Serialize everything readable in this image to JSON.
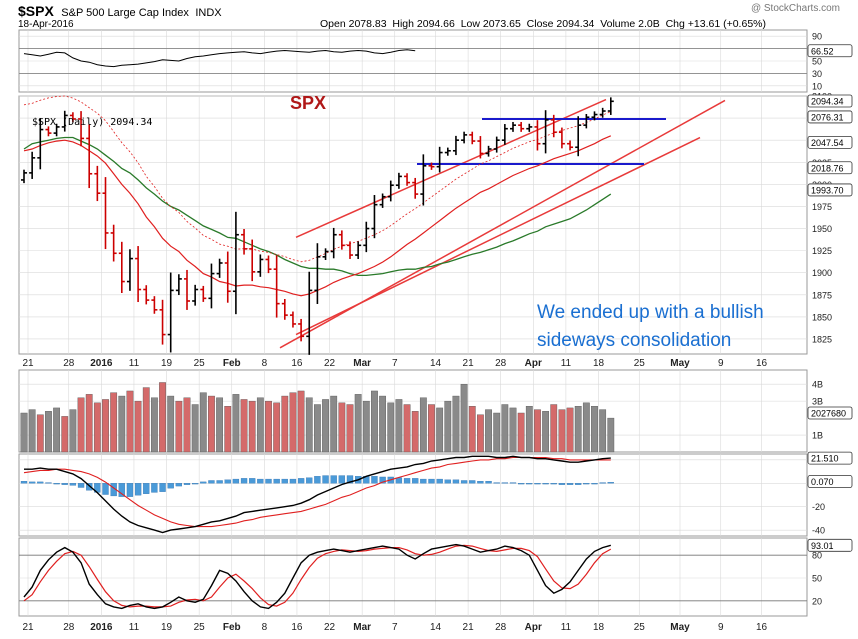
{
  "header": {
    "symbol": "$SPX",
    "name": "S&P 500 Large Cap Index",
    "exchange": "INDX",
    "date": "18-Apr-2016",
    "watermark": "@ StockCharts.com",
    "stats_line": "Open 2078.83  High 2094.66  Low 2073.65  Close 2094.34  Volume 2.0B  Chg +13.61 (+0.65%)"
  },
  "annotations": {
    "spx_label": "SPX",
    "comment_line1": "We ended up with a bullish",
    "comment_line2": "sideways consolidation"
  },
  "colors": {
    "up_bar": "#000000",
    "down_bar": "#cc0000",
    "ma_red": "#e02020",
    "ma_green": "#2a7a2a",
    "trendline": "#e83a3a",
    "support_lines": "#1a1acc",
    "comment_text": "#1a6fd1",
    "volume_gray": "#8a8a8a",
    "volume_red": "#d46a6a",
    "macd_hist": "#4a9ad8",
    "grid": "#d9d9d9"
  },
  "chart_data": [
    {
      "type": "line",
      "name": "rsi_panel",
      "ylim": [
        0,
        100
      ],
      "y_ticks": [
        90,
        70,
        50,
        30,
        10
      ],
      "last_value_label": "66.52",
      "values": [
        62,
        60,
        58,
        61,
        64,
        63,
        55,
        50,
        48,
        44,
        42,
        41,
        43,
        44,
        45,
        47,
        49,
        52,
        51,
        50,
        54,
        57,
        58,
        60,
        62,
        63,
        64,
        65,
        63,
        62,
        64,
        66,
        67,
        66,
        65,
        64,
        66,
        67,
        65,
        64,
        66,
        67,
        66,
        63,
        62,
        64,
        67,
        68,
        66.5
      ]
    },
    {
      "type": "ohlc",
      "name": "price_panel",
      "legend_label": "$SPX (Daily) 2094.34",
      "ylim": [
        1808,
        2100
      ],
      "y_ticks": [
        1825,
        1850,
        1875,
        1900,
        1925,
        1950,
        1975,
        2000,
        2025,
        2050,
        2075,
        2100
      ],
      "price_tags": [
        "2094.34",
        "2076.31",
        "2047.54",
        "2018.76",
        "1993.70"
      ],
      "x_tick_labels": [
        "21",
        "28",
        "2016",
        "11",
        "19",
        "25",
        "Feb",
        "8",
        "16",
        "22",
        "Mar",
        "7",
        "14",
        "21",
        "28",
        "Apr",
        "11",
        "18",
        "25",
        "May",
        "9",
        "16"
      ],
      "close": [
        2013,
        2030,
        2062,
        2058,
        2065,
        2078,
        2074,
        2052,
        2012,
        1990,
        1945,
        1922,
        1890,
        1916,
        1881,
        1869,
        1858,
        1830,
        1880,
        1893,
        1868,
        1881,
        1871,
        1899,
        1911,
        1879,
        1943,
        1927,
        1901,
        1915,
        1904,
        1865,
        1852,
        1842,
        1828,
        1880,
        1918,
        1924,
        1943,
        1931,
        1920,
        1931,
        1950,
        1977,
        1986,
        1999,
        2009,
        2002,
        1989,
        2021,
        2020,
        2036,
        2038,
        2050,
        2056,
        2049,
        2035,
        2040,
        2050,
        2063,
        2067,
        2063,
        2065,
        2046,
        2073,
        2059,
        2046,
        2042,
        2067,
        2076,
        2079,
        2083,
        2094
      ],
      "ma50": [
        2040,
        2046,
        2048,
        2050,
        2052,
        2053,
        2053,
        2049,
        2045,
        2040,
        2033,
        2026,
        2018,
        2013,
        2005,
        1996,
        1989,
        1981,
        1975,
        1971,
        1965,
        1959,
        1953,
        1949,
        1945,
        1940,
        1939,
        1935,
        1931,
        1927,
        1924,
        1920,
        1915,
        1911,
        1907,
        1905,
        1905,
        1904,
        1904,
        1902,
        1899,
        1897,
        1897,
        1898,
        1899,
        1901,
        1903,
        1904,
        1904,
        1906,
        1907,
        1910,
        1912,
        1915,
        1918,
        1921,
        1923,
        1926,
        1929,
        1933,
        1936,
        1940,
        1944,
        1947,
        1952,
        1955,
        1958,
        1961,
        1966,
        1971,
        1977,
        1983,
        1989
      ],
      "ma20": [
        2038,
        2040,
        2044,
        2047,
        2049,
        2050,
        2048,
        2044,
        2038,
        2032,
        2024,
        2012,
        2000,
        1990,
        1978,
        1963,
        1952,
        1939,
        1930,
        1924,
        1914,
        1907,
        1899,
        1895,
        1890,
        1888,
        1885,
        1886,
        1886,
        1884,
        1883,
        1881,
        1879,
        1876,
        1874,
        1876,
        1880,
        1884,
        1889,
        1893,
        1896,
        1899,
        1903,
        1907,
        1912,
        1918,
        1925,
        1932,
        1938,
        1945,
        1952,
        1959,
        1966,
        1973,
        1979,
        1985,
        1991,
        1995,
        2000,
        2005,
        2010,
        2014,
        2018,
        2021,
        2025,
        2029,
        2032,
        2035,
        2038,
        2042,
        2046,
        2051,
        2055
      ]
    },
    {
      "type": "bar",
      "name": "volume_panel",
      "y_ticks_labels": [
        "4B",
        "3B",
        "1B"
      ],
      "last_value_label": "2027680",
      "values": [
        2.3,
        2.5,
        2.2,
        2.4,
        2.6,
        2.1,
        2.5,
        3.2,
        3.4,
        2.9,
        3.1,
        3.5,
        3.3,
        3.6,
        3.0,
        3.8,
        3.2,
        4.1,
        3.3,
        3.0,
        3.2,
        2.8,
        3.5,
        3.3,
        3.2,
        2.7,
        3.4,
        3.1,
        3.0,
        3.2,
        3.0,
        2.9,
        3.3,
        3.5,
        3.6,
        3.2,
        2.8,
        3.1,
        3.3,
        2.9,
        2.8,
        3.4,
        3.0,
        3.6,
        3.3,
        2.9,
        3.1,
        2.8,
        2.4,
        3.2,
        2.8,
        2.6,
        3.0,
        3.3,
        4.0,
        2.7,
        2.2,
        2.5,
        2.3,
        2.8,
        2.6,
        2.3,
        2.7,
        2.5,
        2.4,
        2.8,
        2.5,
        2.6,
        2.7,
        2.9,
        2.7,
        2.5,
        2.0
      ],
      "up": [
        1,
        1,
        0,
        1,
        1,
        0,
        1,
        0,
        0,
        0,
        0,
        0,
        1,
        0,
        0,
        0,
        1,
        0,
        1,
        0,
        0,
        1,
        1,
        0,
        1,
        0,
        1,
        0,
        0,
        1,
        0,
        0,
        0,
        0,
        0,
        1,
        1,
        1,
        1,
        0,
        0,
        1,
        1,
        1,
        1,
        1,
        1,
        0,
        0,
        1,
        0,
        1,
        1,
        1,
        1,
        0,
        0,
        1,
        1,
        1,
        1,
        0,
        1,
        0,
        1,
        0,
        0,
        0,
        1,
        1,
        1,
        1,
        1
      ]
    },
    {
      "type": "line",
      "name": "macd_panel",
      "ylim": [
        -45,
        25
      ],
      "y_ticks": [
        20,
        0,
        -20,
        -40
      ],
      "tags": [
        "21.510",
        "0.070"
      ],
      "macd": [
        12,
        12,
        13,
        12,
        12,
        10,
        8,
        4,
        -2,
        -8,
        -15,
        -22,
        -28,
        -33,
        -36,
        -38,
        -40,
        -42,
        -40,
        -39,
        -38,
        -37,
        -35,
        -33,
        -32,
        -30,
        -28,
        -25,
        -24,
        -23,
        -22,
        -21,
        -20,
        -19,
        -17,
        -14,
        -10,
        -7,
        -4,
        -1,
        1,
        3,
        6,
        8,
        10,
        12,
        13,
        14,
        16,
        17,
        19,
        20,
        21,
        22,
        22,
        23,
        23,
        23,
        22,
        22,
        23,
        22,
        22,
        21,
        21,
        20,
        19,
        18,
        18,
        19,
        20,
        21,
        21.5
      ],
      "signal": [
        9,
        10,
        11,
        11,
        12,
        12,
        11,
        10,
        8,
        5,
        1,
        -4,
        -9,
        -14,
        -19,
        -23,
        -27,
        -30,
        -33,
        -35,
        -36,
        -37,
        -37,
        -37,
        -36,
        -35,
        -34,
        -32,
        -31,
        -29,
        -28,
        -27,
        -26,
        -25,
        -24,
        -22,
        -20,
        -18,
        -15,
        -12,
        -10,
        -7,
        -4,
        -2,
        1,
        3,
        5,
        7,
        9,
        11,
        13,
        14,
        16,
        17,
        18,
        19,
        20,
        20,
        21,
        21,
        22,
        22,
        22,
        22,
        22,
        21,
        21,
        20,
        20,
        20,
        20,
        20,
        20
      ]
    },
    {
      "type": "line",
      "name": "stochastic_panel",
      "ylim": [
        0,
        100
      ],
      "y_ticks": [
        80,
        50,
        20
      ],
      "tag": "93.01",
      "k": [
        25,
        38,
        60,
        74,
        84,
        90,
        84,
        70,
        42,
        28,
        16,
        12,
        10,
        14,
        16,
        12,
        10,
        12,
        18,
        25,
        20,
        18,
        22,
        40,
        60,
        56,
        46,
        32,
        20,
        12,
        10,
        18,
        30,
        50,
        70,
        80,
        84,
        86,
        88,
        86,
        84,
        86,
        88,
        90,
        92,
        90,
        88,
        80,
        75,
        82,
        88,
        90,
        92,
        94,
        92,
        88,
        84,
        86,
        88,
        92,
        90,
        86,
        80,
        60,
        40,
        30,
        35,
        45,
        60,
        75,
        85,
        90,
        93
      ],
      "d": [
        20,
        28,
        45,
        60,
        72,
        82,
        85,
        80,
        65,
        48,
        32,
        20,
        14,
        12,
        13,
        13,
        12,
        12,
        13,
        18,
        21,
        22,
        20,
        25,
        38,
        50,
        55,
        46,
        36,
        24,
        15,
        13,
        18,
        30,
        48,
        64,
        76,
        82,
        85,
        87,
        86,
        85,
        86,
        88,
        89,
        90,
        90,
        87,
        82,
        80,
        81,
        84,
        88,
        92,
        93,
        92,
        89,
        86,
        85,
        87,
        89,
        89,
        86,
        78,
        62,
        46,
        37,
        36,
        42,
        55,
        70,
        82,
        88
      ]
    }
  ]
}
